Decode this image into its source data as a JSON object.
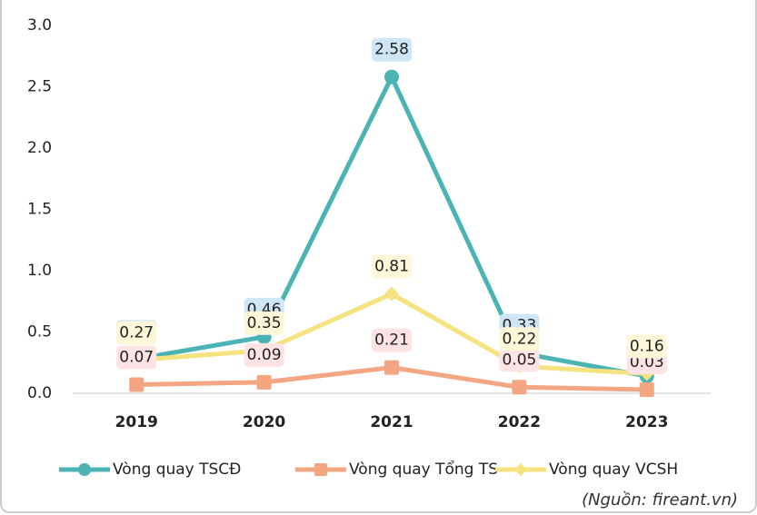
{
  "chart_data": {
    "type": "line",
    "categories": [
      "2019",
      "2020",
      "2021",
      "2022",
      "2023"
    ],
    "series": [
      {
        "name": "Vòng quay TSCĐ",
        "color": "#4bb3b3",
        "label_bg": "#cfe6f7",
        "marker": "circle",
        "values": [
          0.28,
          0.46,
          2.58,
          0.33,
          0.14
        ]
      },
      {
        "name": "Vòng quay Tổng TS",
        "color": "#f4a582",
        "label_bg": "#fde3e3",
        "marker": "square",
        "values": [
          0.07,
          0.09,
          0.21,
          0.05,
          0.03
        ]
      },
      {
        "name": "Vòng quay VCSH",
        "color": "#f6e27f",
        "label_bg": "#fdf6d8",
        "marker": "diamond",
        "values": [
          0.27,
          0.35,
          0.81,
          0.22,
          0.16
        ]
      }
    ],
    "ylim": [
      0,
      3
    ],
    "yticks": [
      {
        "value": 0,
        "label": "0.0"
      },
      0.5,
      {
        "value": 1,
        "label": "1.0"
      },
      1.5,
      {
        "value": 2,
        "label": "2.0"
      },
      2.5,
      {
        "value": 3,
        "label": "3.0"
      }
    ],
    "legend": "bottom",
    "source": "(Nguồn: fireant.vn)"
  }
}
